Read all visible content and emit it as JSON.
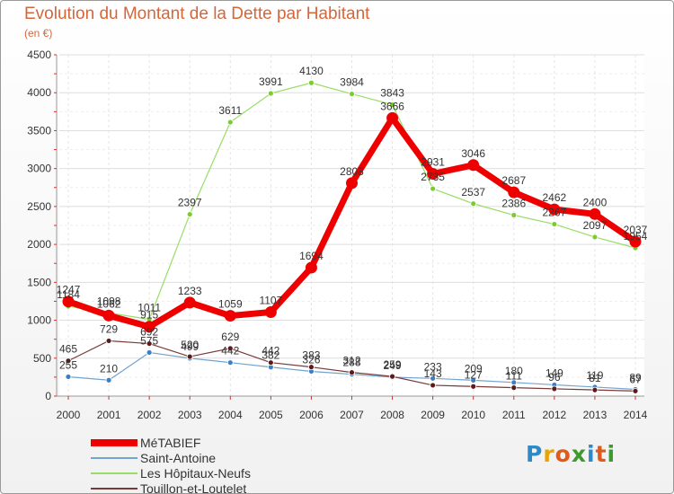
{
  "title": "Evolution du Montant de la Dette par Habitant",
  "subtitle": "(en €)",
  "logo": {
    "letters": [
      "P",
      "r",
      "o",
      "x",
      "i",
      "t",
      "i"
    ],
    "colors": [
      "#2d8ac7",
      "#e8a400",
      "#e05a1a",
      "#3f9a2e",
      "#2d8ac7",
      "#e05a1a",
      "#3f9a2e"
    ]
  },
  "chart_data": {
    "type": "line",
    "categories": [
      "2000",
      "2001",
      "2002",
      "2003",
      "2004",
      "2005",
      "2006",
      "2007",
      "2008",
      "2009",
      "2010",
      "2011",
      "2012",
      "2013",
      "2014"
    ],
    "ylim": [
      0,
      4500
    ],
    "yticks": [
      "0",
      "500",
      "1000",
      "1500",
      "2000",
      "2500",
      "3000",
      "3500",
      "4000",
      "4500"
    ],
    "grid": true,
    "legend_position": "bottom-left",
    "series": [
      {
        "name": "Les Hôpitaux-Neufs",
        "color": "#99dd66",
        "marker": "#7ccc2e",
        "width": 1.2,
        "radius": 3,
        "values": [
          1184,
          1098,
          1011,
          2397,
          3611,
          3991,
          4130,
          3984,
          3843,
          2735,
          2537,
          2386,
          2267,
          2097,
          1954
        ],
        "labels": [
          "1184",
          "1098",
          "1011",
          "2397",
          "3611",
          "3991",
          "4130",
          "3984",
          "3843",
          "2735",
          "2537",
          "2386",
          "2267",
          "2097",
          "1954"
        ]
      },
      {
        "name": "Saint-Antoine",
        "color": "#72a4cf",
        "marker": "#3b7fc4",
        "width": 1.2,
        "radius": 3,
        "values": [
          255,
          210,
          575,
          499,
          442,
          382,
          326,
          288,
          249,
          233,
          209,
          180,
          149,
          119,
          89
        ],
        "labels": [
          "255",
          "210",
          "575",
          "499",
          "442",
          "382",
          "326",
          "288",
          "249",
          "233",
          "209",
          "180",
          "149",
          "119",
          "89"
        ]
      },
      {
        "name": "Touillon-et-Loutelet",
        "color": "#7a3a3a",
        "marker": "#5c1a1a",
        "width": 1.2,
        "radius": 3,
        "values": [
          465,
          729,
          692,
          520,
          629,
          442,
          383,
          312,
          259,
          143,
          127,
          111,
          96,
          81,
          67
        ],
        "labels": [
          "465",
          "729",
          "692",
          "520",
          "629",
          "442",
          "383",
          "312",
          "259",
          "143",
          "127",
          "111",
          "96",
          "81",
          "67"
        ]
      },
      {
        "name": "MéTABIEF",
        "color": "#ee0000",
        "marker": "#ee0000",
        "width": 7,
        "radius": 6.5,
        "values": [
          1247,
          1062,
          915,
          1233,
          1059,
          1107,
          1694,
          2808,
          3666,
          2931,
          3046,
          2687,
          2462,
          2400,
          2037
        ],
        "labels": [
          "1247",
          "1062",
          "915",
          "1233",
          "1059",
          "1107",
          "1694",
          "2808",
          "3666",
          "2931",
          "3046",
          "2687",
          "2462",
          "2400",
          "2037"
        ]
      }
    ]
  },
  "legend": [
    {
      "label": "MéTABIEF",
      "color": "#ee0000",
      "thickness": 8
    },
    {
      "label": "Saint-Antoine",
      "color": "#72a4cf",
      "thickness": 2
    },
    {
      "label": "Les Hôpitaux-Neufs",
      "color": "#99dd66",
      "thickness": 2
    },
    {
      "label": "Touillon-et-Loutelet",
      "color": "#7a3a3a",
      "thickness": 2
    }
  ]
}
